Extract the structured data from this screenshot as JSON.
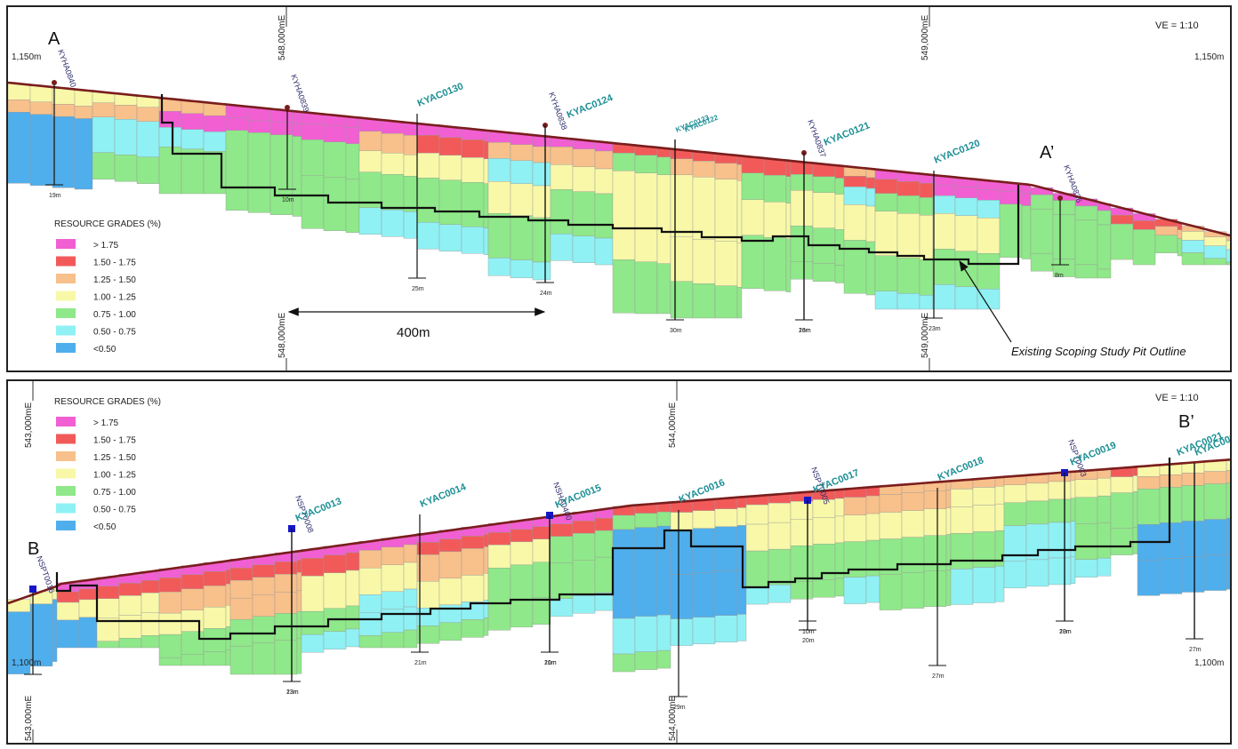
{
  "legend": {
    "title": "RESOURCE GRADES (%)",
    "classes": [
      {
        "label": "> 1.75",
        "color": "#f15fd3"
      },
      {
        "label": "1.50 - 1.75",
        "color": "#f25a5a"
      },
      {
        "label": "1.25 - 1.50",
        "color": "#f8c08a"
      },
      {
        "label": "1.00 - 1.25",
        "color": "#f8f8a8"
      },
      {
        "label": "0.75 - 1.00",
        "color": "#8fe889"
      },
      {
        "label": "0.50 - 0.75",
        "color": "#8ff1f4"
      },
      {
        "label": "<0.50",
        "color": "#4faeec"
      }
    ]
  },
  "sectionA": {
    "start_label": "A",
    "end_label": "A’",
    "ve": "VE = 1:10",
    "elev_left": "1,150m",
    "elev_right": "1,150m",
    "easting_1": "548,000mE",
    "easting_2": "549,000mE",
    "scale_label": "400m",
    "pit_label": "Existing Scoping Study Pit Outline",
    "holes": [
      {
        "id": "KYHA0840",
        "depth": "19m"
      },
      {
        "id": "KYHA0839",
        "depth": "10m"
      },
      {
        "id": "KYAC0130",
        "depth": "25m"
      },
      {
        "id": "KYHA0838",
        "depth": ""
      },
      {
        "id": "KYAC0124",
        "depth": "24m"
      },
      {
        "id": "KYAC0123",
        "depth": ""
      },
      {
        "id": "KYAC0122",
        "depth": "30m"
      },
      {
        "id": "KYHA0837",
        "depth": "13m"
      },
      {
        "id": "KYAC0121",
        "depth": "26m"
      },
      {
        "id": "KYAC0120",
        "depth": "23m"
      },
      {
        "id": "KYHA0836",
        "depth": "8m"
      }
    ]
  },
  "sectionB": {
    "start_label": "B",
    "end_label": "B’",
    "ve": "VE = 1:10",
    "elev_left": "1,100m",
    "elev_right": "1,100m",
    "easting_1": "543,000mE",
    "easting_2": "544,000mE",
    "holes": [
      {
        "id": "NSPT0016",
        "depth": ""
      },
      {
        "id": "NSPT0008",
        "depth": "13m"
      },
      {
        "id": "KYAC0013",
        "depth": "23m"
      },
      {
        "id": "KYAC0014",
        "depth": "21m"
      },
      {
        "id": "NSHA0400",
        "depth": "10m"
      },
      {
        "id": "KYAC0015",
        "depth": "21m"
      },
      {
        "id": "KYAC0016",
        "depth": "29m"
      },
      {
        "id": "NSPT0005",
        "depth": "10m"
      },
      {
        "id": "KYAC0017",
        "depth": "20m"
      },
      {
        "id": "KYAC0018",
        "depth": "27m"
      },
      {
        "id": "NSPT0003",
        "depth": "10m"
      },
      {
        "id": "KYAC0019",
        "depth": "23m"
      },
      {
        "id": "KYAC0021",
        "depth": ""
      },
      {
        "id": "KYAC0020",
        "depth": "27m"
      }
    ]
  }
}
